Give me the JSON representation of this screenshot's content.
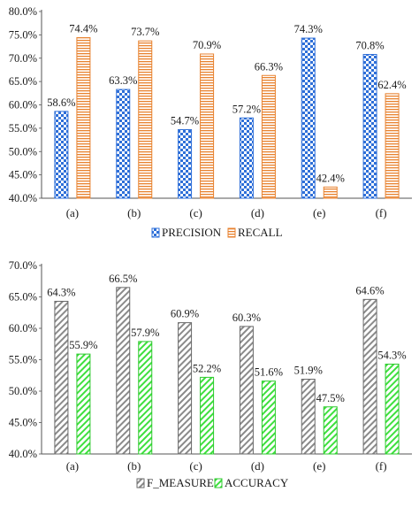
{
  "chart_data": [
    {
      "type": "bar",
      "categories": [
        "(a)",
        "(b)",
        "(c)",
        "(d)",
        "(e)",
        "(f)"
      ],
      "series": [
        {
          "name": "PRECISION",
          "values": [
            58.6,
            63.3,
            54.7,
            57.2,
            74.3,
            70.8
          ],
          "labels": [
            "58.6%",
            "63.3%",
            "54.7%",
            "57.2%",
            "74.3%",
            "70.8%"
          ],
          "color": "#2e6fd8",
          "pattern": "checker"
        },
        {
          "name": "RECALL",
          "values": [
            74.4,
            73.7,
            70.9,
            66.3,
            42.4,
            62.4
          ],
          "labels": [
            "74.4%",
            "73.7%",
            "70.9%",
            "66.3%",
            "42.4%",
            "62.4%"
          ],
          "color": "#e8822f",
          "pattern": "horizontal-lines"
        }
      ],
      "ylim": [
        40,
        80
      ],
      "yticks": [
        40,
        45,
        50,
        55,
        60,
        65,
        70,
        75,
        80
      ],
      "ytick_labels": [
        "40.0%",
        "45.0%",
        "50.0%",
        "55.0%",
        "60.0%",
        "65.0%",
        "70.0%",
        "75.0%",
        "80.0%"
      ],
      "xlabel": "",
      "ylabel": "",
      "title": "",
      "grid": false,
      "legend_position": "bottom"
    },
    {
      "type": "bar",
      "categories": [
        "(a)",
        "(b)",
        "(c)",
        "(d)",
        "(e)",
        "(f)"
      ],
      "series": [
        {
          "name": "F_MEASURE",
          "values": [
            64.3,
            66.5,
            60.9,
            60.3,
            51.9,
            64.6
          ],
          "labels": [
            "64.3%",
            "66.5%",
            "60.9%",
            "60.3%",
            "51.9%",
            "64.6%"
          ],
          "color": "#8a8a8a",
          "pattern": "diagonal-hatch"
        },
        {
          "name": "ACCURACY",
          "values": [
            55.9,
            57.9,
            52.2,
            51.6,
            47.5,
            54.3
          ],
          "labels": [
            "55.9%",
            "57.9%",
            "52.2%",
            "51.6%",
            "47.5%",
            "54.3%"
          ],
          "color": "#3ee03e",
          "pattern": "diagonal-hatch"
        }
      ],
      "ylim": [
        40,
        70
      ],
      "yticks": [
        40,
        45,
        50,
        55,
        60,
        65,
        70
      ],
      "ytick_labels": [
        "40.0%",
        "45.0%",
        "50.0%",
        "55.0%",
        "60.0%",
        "65.0%",
        "70.0%"
      ],
      "xlabel": "",
      "ylabel": "",
      "title": "",
      "grid": false,
      "legend_position": "bottom"
    }
  ]
}
